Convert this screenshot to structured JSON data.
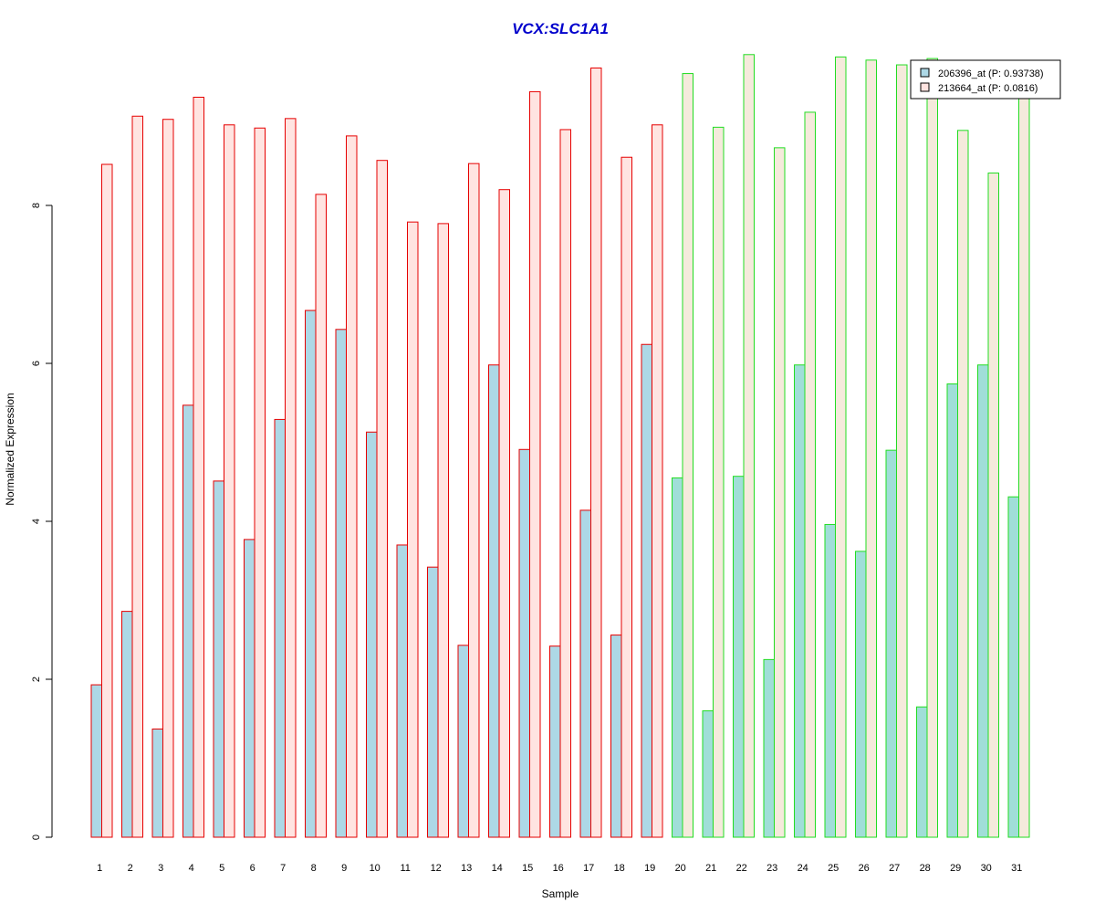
{
  "colors": {
    "title": "#0000cc",
    "group1_stroke": "#e60000",
    "group2_stroke": "#22dd22",
    "series1_fill_group1": "#add8e6",
    "series2_fill_group1": "#ffe4e1",
    "series1_fill_group2": "#a0ded8",
    "series2_fill_group2": "#f5eadc",
    "legend_swatch1": "#add8e6",
    "legend_swatch2": "#ffe4e1"
  },
  "chart_data": {
    "type": "bar",
    "title": "VCX:SLC1A1",
    "xlabel": "Sample",
    "ylabel": "Normalized Expression",
    "ylim": [
      0,
      9.9
    ],
    "yticks": [
      0,
      2,
      4,
      6,
      8
    ],
    "grid": false,
    "legend_position": "top-right",
    "categories": [
      "1",
      "2",
      "3",
      "4",
      "5",
      "6",
      "7",
      "8",
      "9",
      "10",
      "11",
      "12",
      "13",
      "14",
      "15",
      "16",
      "17",
      "18",
      "19",
      "20",
      "21",
      "22",
      "23",
      "24",
      "25",
      "26",
      "27",
      "28",
      "29",
      "30",
      "31"
    ],
    "group_of_category": [
      1,
      1,
      1,
      1,
      1,
      1,
      1,
      1,
      1,
      1,
      1,
      1,
      1,
      1,
      1,
      1,
      1,
      1,
      1,
      2,
      2,
      2,
      2,
      2,
      2,
      2,
      2,
      2,
      2,
      2,
      2
    ],
    "series": [
      {
        "name": "206396_at (P: 0.93738)",
        "values": [
          1.93,
          2.86,
          1.37,
          5.47,
          4.51,
          3.77,
          5.29,
          6.67,
          6.43,
          5.13,
          3.7,
          3.42,
          2.43,
          5.98,
          4.91,
          2.42,
          4.14,
          2.56,
          6.24,
          4.55,
          1.6,
          4.57,
          2.25,
          5.98,
          3.96,
          3.62,
          4.9,
          1.65,
          5.74,
          5.98,
          4.31
        ]
      },
      {
        "name": "213664_at (P: 0.0816)",
        "values": [
          8.52,
          9.13,
          9.09,
          9.37,
          9.02,
          8.98,
          9.1,
          8.14,
          8.88,
          8.57,
          7.79,
          7.77,
          8.53,
          8.2,
          9.44,
          8.96,
          9.74,
          8.61,
          9.02,
          9.67,
          8.99,
          9.91,
          8.73,
          9.18,
          9.88,
          9.84,
          9.78,
          9.86,
          8.95,
          8.41,
          9.5
        ]
      }
    ]
  }
}
